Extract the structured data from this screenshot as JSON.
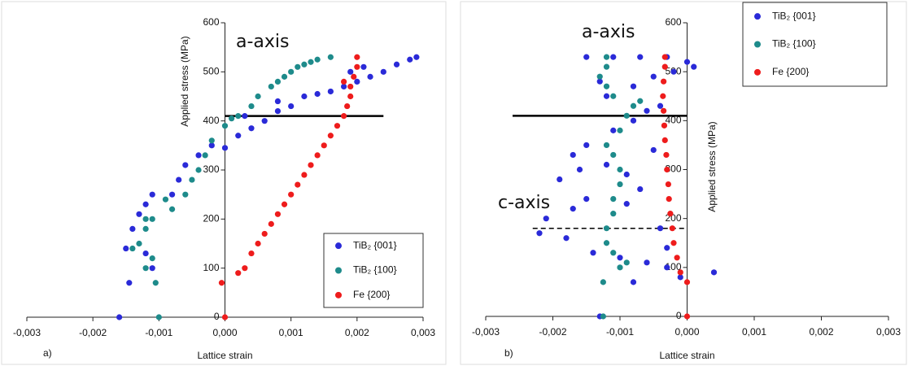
{
  "chart_data": [
    {
      "type": "scatter",
      "panel_label": "a)",
      "xlabel": "Lattice strain",
      "ylabel": "Applied stress (MPa)",
      "xlim": [
        -0.003,
        0.003
      ],
      "ylim": [
        0,
        600
      ],
      "xticks": [
        {
          "value": -0.003,
          "label": "-0,003"
        },
        {
          "value": -0.002,
          "label": "-0,002"
        },
        {
          "value": -0.001,
          "label": "-0,001"
        },
        {
          "value": 0,
          "label": "0,000"
        },
        {
          "value": 0.001,
          "label": "0,001"
        },
        {
          "value": 0.002,
          "label": "0,002"
        },
        {
          "value": 0.003,
          "label": "0,003"
        }
      ],
      "yticks": [
        0,
        100,
        200,
        300,
        400,
        500,
        600
      ],
      "legend": "lower right",
      "annotations": [
        {
          "text": "a-axis",
          "color": "#1e8b8b"
        }
      ],
      "hlines": [
        {
          "y": 410,
          "xrange": [
            0,
            0.0024
          ],
          "style": "solid"
        }
      ],
      "series": [
        {
          "name": "TiB₂ {001}",
          "color": "#2a2ad8",
          "x": [
            -0.0016,
            -0.00145,
            -0.0015,
            -0.0014,
            -0.0013,
            -0.0012,
            -0.0011,
            -0.0011,
            -0.0012,
            -0.0008,
            -0.0007,
            -0.0006,
            -0.0004,
            -0.0002,
            0,
            0.0002,
            0.0004,
            0.0006,
            0.0008,
            0.001,
            0.0012,
            0.0014,
            0.0016,
            0.0018,
            0.002,
            0.0022,
            0.0024,
            0.0026,
            0.0028,
            0.0029,
            0.0019,
            0.0021,
            0.0003,
            0.0008
          ],
          "values": [
            0,
            70,
            140,
            180,
            210,
            230,
            250,
            100,
            130,
            250,
            280,
            310,
            330,
            350,
            345,
            370,
            385,
            400,
            420,
            430,
            450,
            455,
            460,
            470,
            480,
            490,
            500,
            515,
            525,
            530,
            500,
            510,
            410,
            440
          ]
        },
        {
          "name": "TiB₂ {100}",
          "color": "#1e8b8b",
          "x": [
            -0.001,
            -0.00105,
            -0.0012,
            -0.0011,
            -0.0013,
            -0.0012,
            -0.0011,
            -0.0014,
            -0.0008,
            -0.0006,
            -0.0005,
            -0.0004,
            -0.0003,
            -0.0002,
            0,
            0.0001,
            0.0002,
            0.0004,
            0.0005,
            0.0007,
            0.0008,
            0.0009,
            0.001,
            0.0011,
            0.0012,
            0.0013,
            0.0014,
            0.0016,
            -0.0009,
            -0.0012
          ],
          "values": [
            0,
            70,
            100,
            120,
            150,
            180,
            200,
            140,
            220,
            250,
            280,
            300,
            330,
            360,
            390,
            405,
            410,
            430,
            450,
            470,
            480,
            490,
            500,
            510,
            515,
            520,
            525,
            530,
            240,
            200
          ]
        },
        {
          "name": "Fe {200}",
          "color": "#ee1c1c",
          "x": [
            0,
            -5e-05,
            0.0002,
            0.0003,
            0.0004,
            0.0005,
            0.0006,
            0.0007,
            0.0008,
            0.0009,
            0.001,
            0.0011,
            0.0012,
            0.0013,
            0.0014,
            0.0015,
            0.0016,
            0.0017,
            0.0018,
            0.00185,
            0.0019,
            0.0019,
            0.00195,
            0.002,
            0.002,
            0.0018
          ],
          "values": [
            0,
            70,
            90,
            100,
            130,
            150,
            170,
            190,
            210,
            230,
            250,
            270,
            290,
            310,
            330,
            350,
            370,
            390,
            410,
            430,
            450,
            470,
            490,
            510,
            530,
            480
          ]
        }
      ]
    },
    {
      "type": "scatter",
      "panel_label": "b)",
      "xlabel": "Lattice strain",
      "ylabel": "Applied stress (MPa)",
      "xlim": [
        -0.003,
        0.003
      ],
      "ylim": [
        0,
        600
      ],
      "xticks": [
        {
          "value": -0.003,
          "label": "-0,003"
        },
        {
          "value": -0.002,
          "label": "-0,002"
        },
        {
          "value": -0.001,
          "label": "-0,001"
        },
        {
          "value": 0,
          "label": "0,000"
        },
        {
          "value": 0.001,
          "label": "0,001"
        },
        {
          "value": 0.002,
          "label": "0,002"
        },
        {
          "value": 0.003,
          "label": "0,003"
        }
      ],
      "yticks": [
        0,
        100,
        200,
        300,
        400,
        500,
        600
      ],
      "legend": "upper right",
      "annotations": [
        {
          "text": "a-axis",
          "color": "#1e8b8b"
        },
        {
          "text": "c-axis",
          "color": "#2a2ad8"
        }
      ],
      "hlines": [
        {
          "y": 410,
          "xrange": [
            -0.0026,
            0
          ],
          "style": "solid"
        },
        {
          "y": 180,
          "xrange": [
            -0.0023,
            0
          ],
          "style": "dashed"
        }
      ],
      "series": [
        {
          "name": "TiB₂ {001}",
          "color": "#2a2ad8",
          "x": [
            -0.0013,
            0.0004,
            -0.0001,
            -0.0003,
            -0.0006,
            -0.001,
            -0.0014,
            -0.0018,
            -0.0022,
            -0.0021,
            -0.0017,
            -0.0015,
            -0.0019,
            -0.0016,
            -0.0012,
            -0.0017,
            -0.0015,
            -0.0009,
            -0.0007,
            -0.0005,
            -0.0011,
            -0.0008,
            -0.0006,
            -0.0004,
            -0.0012,
            -0.0008,
            -0.0005,
            -0.0002,
            0,
            -0.0015,
            -0.0011,
            -0.0007,
            -0.0003,
            0.0001,
            -0.0013,
            -0.0009,
            -0.0004,
            -0.0008,
            -0.0003
          ],
          "values": [
            0,
            90,
            80,
            100,
            110,
            120,
            130,
            160,
            170,
            200,
            220,
            240,
            280,
            300,
            310,
            330,
            350,
            290,
            260,
            340,
            380,
            400,
            420,
            430,
            450,
            470,
            490,
            500,
            520,
            530,
            530,
            530,
            530,
            510,
            480,
            230,
            180,
            70,
            140
          ]
        },
        {
          "name": "TiB₂ {100}",
          "color": "#1e8b8b",
          "x": [
            -0.00125,
            -0.00125,
            -0.001,
            -0.0009,
            -0.0011,
            -0.0012,
            -0.0012,
            -0.0011,
            -0.0011,
            -0.001,
            -0.001,
            -0.0011,
            -0.0012,
            -0.001,
            -0.0009,
            -0.0008,
            -0.0011,
            -0.0012,
            -0.0013,
            -0.0012,
            -0.0012,
            -0.0007
          ],
          "values": [
            0,
            70,
            100,
            110,
            130,
            150,
            180,
            210,
            240,
            270,
            300,
            330,
            350,
            380,
            410,
            430,
            450,
            470,
            490,
            510,
            530,
            440
          ]
        },
        {
          "name": "Fe {200}",
          "color": "#ee1c1c",
          "x": [
            0,
            0,
            -0.0001,
            -0.00015,
            -0.0002,
            -0.00022,
            -0.00025,
            -0.00027,
            -0.00028,
            -0.0003,
            -0.00031,
            -0.00033,
            -0.00034,
            -0.00035,
            -0.00036,
            -0.00035,
            -0.00033,
            -0.00033
          ],
          "values": [
            0,
            70,
            90,
            120,
            150,
            180,
            210,
            240,
            270,
            300,
            330,
            360,
            390,
            420,
            450,
            480,
            510,
            530
          ]
        }
      ]
    }
  ]
}
